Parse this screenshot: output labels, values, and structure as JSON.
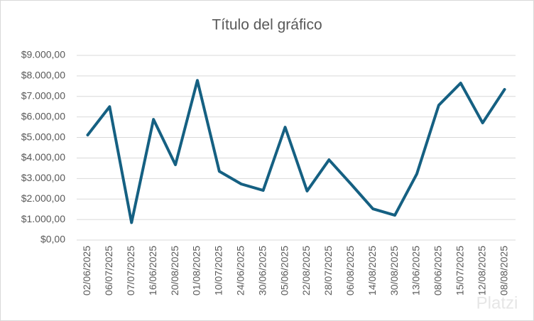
{
  "chart_data": {
    "type": "line",
    "title": "Título del gráfico",
    "categories": [
      "02/06/2025",
      "06/07/2025",
      "07/07/2025",
      "16/06/2025",
      "20/08/2025",
      "01/08/2025",
      "10/07/2025",
      "24/06/2025",
      "30/06/2025",
      "05/06/2025",
      "22/08/2025",
      "28/07/2025",
      "06/08/2025",
      "14/08/2025",
      "30/08/2025",
      "13/06/2025",
      "08/06/2025",
      "15/07/2025",
      "12/08/2025",
      "08/08/2025"
    ],
    "values": [
      5120,
      6500,
      850,
      5880,
      3670,
      7780,
      3350,
      2730,
      2420,
      5500,
      2390,
      3910,
      2730,
      1520,
      1210,
      3220,
      6570,
      7650,
      5710,
      7340
    ],
    "color": "#156082",
    "ylim": [
      0,
      9000
    ],
    "yticks": [
      {
        "value": 0,
        "label": "$0,00"
      },
      {
        "value": 1000,
        "label": "$1.000,00"
      },
      {
        "value": 2000,
        "label": "$2.000,00"
      },
      {
        "value": 3000,
        "label": "$3.000,00"
      },
      {
        "value": 4000,
        "label": "$4.000,00"
      },
      {
        "value": 5000,
        "label": "$5.000,00"
      },
      {
        "value": 6000,
        "label": "$6.000,00"
      },
      {
        "value": 7000,
        "label": "$7.000,00"
      },
      {
        "value": 8000,
        "label": "$8.000,00"
      },
      {
        "value": 9000,
        "label": "$9.000,00"
      }
    ],
    "grid": true
  },
  "watermark": "Platzi"
}
